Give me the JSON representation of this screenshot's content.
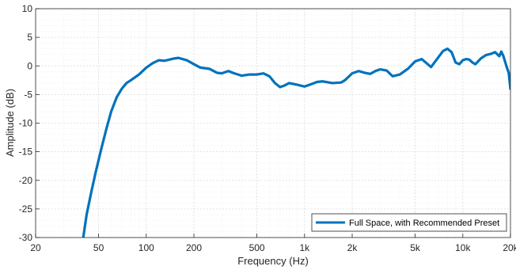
{
  "chart_data": {
    "type": "line",
    "xscale": "log",
    "xlim": [
      20,
      20000
    ],
    "ylim": [
      -30,
      10
    ],
    "xlabel": "Frequency (Hz)",
    "ylabel": "Amplitude (dB)",
    "xticks": [
      {
        "value": 20,
        "label": "20"
      },
      {
        "value": 50,
        "label": "50"
      },
      {
        "value": 100,
        "label": "100"
      },
      {
        "value": 200,
        "label": "200"
      },
      {
        "value": 500,
        "label": "500"
      },
      {
        "value": 1000,
        "label": "1k"
      },
      {
        "value": 2000,
        "label": "2k"
      },
      {
        "value": 5000,
        "label": "5k"
      },
      {
        "value": 10000,
        "label": "10k"
      },
      {
        "value": 20000,
        "label": "20k"
      }
    ],
    "yticks": [
      10,
      5,
      0,
      -5,
      -10,
      -15,
      -20,
      -25,
      -30
    ],
    "grid": true,
    "minor_grid": true,
    "legend_position": "bottom-right",
    "colors": {
      "series": "#0072BD",
      "grid": "#e6e6e6",
      "axis": "#262626"
    },
    "series": [
      {
        "name": "Full Space, with Recommended Preset",
        "points": [
          [
            40,
            -30
          ],
          [
            42,
            -26
          ],
          [
            45,
            -22
          ],
          [
            48,
            -18.5
          ],
          [
            52,
            -14.5
          ],
          [
            56,
            -11
          ],
          [
            60,
            -8
          ],
          [
            65,
            -5.5
          ],
          [
            70,
            -4
          ],
          [
            75,
            -3
          ],
          [
            80,
            -2.5
          ],
          [
            90,
            -1.5
          ],
          [
            100,
            -0.3
          ],
          [
            110,
            0.5
          ],
          [
            120,
            1
          ],
          [
            130,
            0.9
          ],
          [
            140,
            1.1
          ],
          [
            150,
            1.3
          ],
          [
            160,
            1.4
          ],
          [
            180,
            1
          ],
          [
            200,
            0.3
          ],
          [
            220,
            -0.3
          ],
          [
            250,
            -0.5
          ],
          [
            280,
            -1.2
          ],
          [
            300,
            -1.3
          ],
          [
            330,
            -0.9
          ],
          [
            360,
            -1.3
          ],
          [
            400,
            -1.7
          ],
          [
            450,
            -1.5
          ],
          [
            500,
            -1.5
          ],
          [
            550,
            -1.3
          ],
          [
            600,
            -1.8
          ],
          [
            650,
            -3
          ],
          [
            700,
            -3.7
          ],
          [
            750,
            -3.4
          ],
          [
            800,
            -3
          ],
          [
            900,
            -3.3
          ],
          [
            1000,
            -3.6
          ],
          [
            1100,
            -3.2
          ],
          [
            1200,
            -2.8
          ],
          [
            1300,
            -2.7
          ],
          [
            1500,
            -3
          ],
          [
            1700,
            -2.9
          ],
          [
            1800,
            -2.5
          ],
          [
            2000,
            -1.3
          ],
          [
            2200,
            -0.9
          ],
          [
            2400,
            -1.2
          ],
          [
            2600,
            -1.4
          ],
          [
            2800,
            -0.9
          ],
          [
            3000,
            -0.6
          ],
          [
            3300,
            -0.8
          ],
          [
            3600,
            -1.8
          ],
          [
            4000,
            -1.5
          ],
          [
            4500,
            -0.5
          ],
          [
            5000,
            0.8
          ],
          [
            5500,
            1.2
          ],
          [
            6000,
            0.3
          ],
          [
            6300,
            -0.2
          ],
          [
            7000,
            1.5
          ],
          [
            7500,
            2.6
          ],
          [
            8000,
            3
          ],
          [
            8500,
            2.4
          ],
          [
            9000,
            0.6
          ],
          [
            9500,
            0.3
          ],
          [
            10000,
            1
          ],
          [
            10500,
            1.2
          ],
          [
            11000,
            1.1
          ],
          [
            11500,
            0.6
          ],
          [
            12000,
            0.3
          ],
          [
            13000,
            1.3
          ],
          [
            14000,
            1.9
          ],
          [
            15000,
            2.1
          ],
          [
            16000,
            2.4
          ],
          [
            17000,
            1.7
          ],
          [
            17500,
            2.5
          ],
          [
            18000,
            1.8
          ],
          [
            19000,
            -0.3
          ],
          [
            19500,
            -1.2
          ],
          [
            20000,
            -4
          ]
        ]
      }
    ]
  }
}
